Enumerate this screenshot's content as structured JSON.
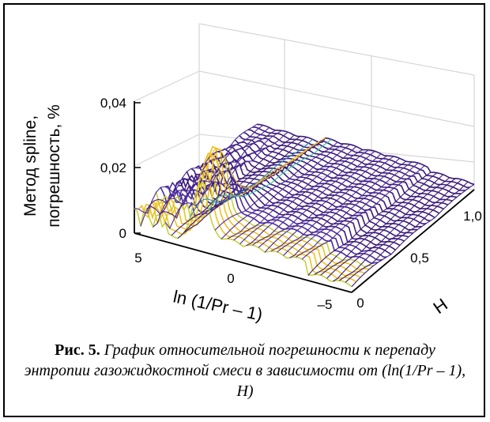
{
  "chart_data": {
    "type": "surface3d",
    "ylabel_lines": [
      "Метод spline,",
      "погрешность, %"
    ],
    "xlabel": "ln (1/Pr – 1)",
    "hlabel": "H",
    "z_ticks": [
      "0",
      "0,02",
      "0,04"
    ],
    "x_ticks": [
      "5",
      "0",
      "–5"
    ],
    "h_ticks": [
      "0",
      "0,5",
      "1,0"
    ],
    "x_range": [
      5,
      -5
    ],
    "h_range": [
      0,
      1.0
    ],
    "z_range": [
      0,
      0.04
    ],
    "peak": {
      "x": 2.0,
      "h": 0.1,
      "z": 0.022
    },
    "colormap": [
      "#3b1a7a",
      "#4a2a9a",
      "#2a88b8",
      "#30c0a0",
      "#c8d040",
      "#f0c020"
    ]
  },
  "caption": {
    "label": "Рис. 5.",
    "text": " График относительной погрешности к перепаду энтропии газожидкостной смеси в зависимости от (ln(1/Pr – 1), H)"
  }
}
